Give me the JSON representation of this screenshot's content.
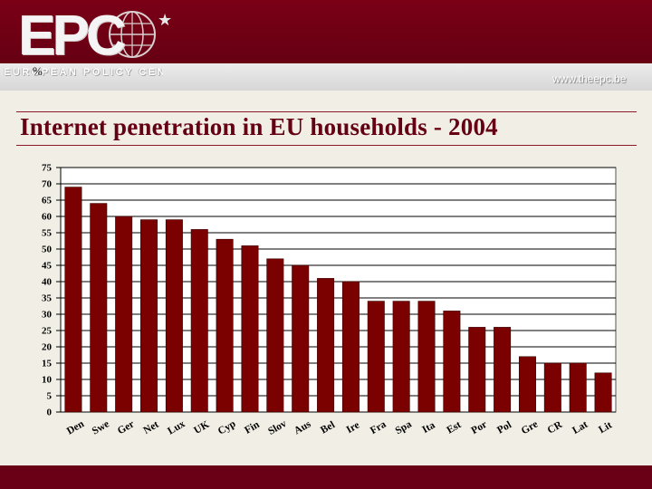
{
  "header": {
    "logo_text": "EPC",
    "logo_subtitle": "EUROPEAN POLICY CENTRE",
    "website": "www.theepc.be"
  },
  "slide": {
    "title": "Internet penetration in EU households - 2004"
  },
  "chart_data": {
    "type": "bar",
    "title": "Internet penetration in EU households - 2004",
    "ylabel": "%",
    "xlabel": "",
    "categories": [
      "Den",
      "Swe",
      "Ger",
      "Net",
      "Lux",
      "UK",
      "Cyp",
      "Fin",
      "Slov",
      "Aus",
      "Bel",
      "Ire",
      "Fra",
      "Spa",
      "Ita",
      "Est",
      "Por",
      "Pol",
      "Gre",
      "CR",
      "Lat",
      "Lit"
    ],
    "values": [
      69,
      64,
      60,
      59,
      59,
      56,
      53,
      51,
      47,
      45,
      41,
      40,
      34,
      34,
      34,
      31,
      26,
      26,
      17,
      15,
      15,
      12
    ],
    "ylim": [
      0,
      75
    ],
    "yticks": [
      0,
      5,
      10,
      15,
      20,
      25,
      30,
      35,
      40,
      45,
      50,
      55,
      60,
      65,
      70,
      75
    ],
    "grid": true,
    "bar_color": "#7b0000",
    "colors": {
      "header": "#6b0015",
      "title": "#650014",
      "background": "#f1efe5"
    }
  }
}
